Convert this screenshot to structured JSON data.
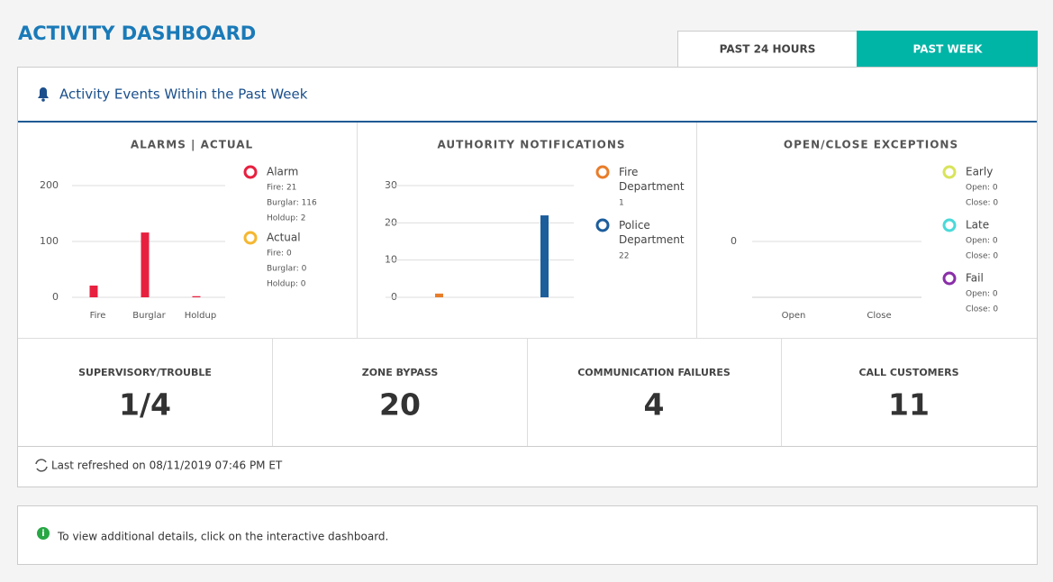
{
  "header": {
    "title": "ACTIVITY DASHBOARD"
  },
  "tabs": [
    "PAST 24 HOURS",
    "PAST WEEK"
  ],
  "panel": {
    "title": "Activity Events Within the Past Week"
  },
  "chart_data": [
    {
      "type": "bar",
      "title": "ALARMS | ACTUAL",
      "categories": [
        "Fire",
        "Burglar",
        "Holdup"
      ],
      "series": [
        {
          "name": "Alarm",
          "color": "#e8203f",
          "values": [
            21,
            116,
            2
          ],
          "value_labels": [
            "Fire: 21",
            "Burglar: 116",
            "Holdup: 2"
          ]
        },
        {
          "name": "Actual",
          "color": "#f5b731",
          "values": [
            0,
            0,
            0
          ],
          "value_labels": [
            "Fire: 0",
            "Burglar: 0",
            "Holdup: 0"
          ]
        }
      ],
      "ylim": [
        0,
        200
      ],
      "yticks": [
        0,
        100,
        200
      ],
      "grid": true
    },
    {
      "type": "bar",
      "title": "AUTHORITY NOTIFICATIONS",
      "categories": [
        null
      ],
      "series": [
        {
          "name": "Fire Department",
          "color": "#e87d2a",
          "values": [
            1
          ]
        },
        {
          "name": "Police Department",
          "color": "#1c5d9c",
          "values": [
            22
          ]
        }
      ],
      "ylim": [
        0,
        30
      ],
      "yticks": [
        0,
        10,
        20,
        30
      ],
      "grid": true
    },
    {
      "type": "bar",
      "title": "OPEN/CLOSE EXCEPTIONS",
      "categories": [
        "Open",
        "Close"
      ],
      "series": [
        {
          "name": "Early",
          "color": "#d8e45a",
          "values": [
            0,
            0
          ],
          "value_labels": [
            "Open: 0",
            "Close: 0"
          ]
        },
        {
          "name": "Late",
          "color": "#4ad9d9",
          "values": [
            0,
            0
          ],
          "value_labels": [
            "Open: 0",
            "Close: 0"
          ]
        },
        {
          "name": "Fail",
          "color": "#8a2ea8",
          "values": [
            0,
            0
          ],
          "value_labels": [
            "Open: 0",
            "Close: 0"
          ]
        }
      ],
      "ylim": [
        -1,
        1
      ],
      "yticks": [
        0
      ],
      "grid": true
    }
  ],
  "stats": [
    {
      "label": "SUPERVISORY/TROUBLE",
      "value": "1/4"
    },
    {
      "label": "ZONE BYPASS",
      "value": 20
    },
    {
      "label": "COMMUNICATION FAILURES",
      "value": 4
    },
    {
      "label": "CALL CUSTOMERS",
      "value": 11
    }
  ],
  "footer": {
    "refreshed": "Last refreshed on 08/11/2019 07:46 PM ET"
  },
  "info": {
    "text": "To view additional details, click on the interactive dashboard."
  }
}
